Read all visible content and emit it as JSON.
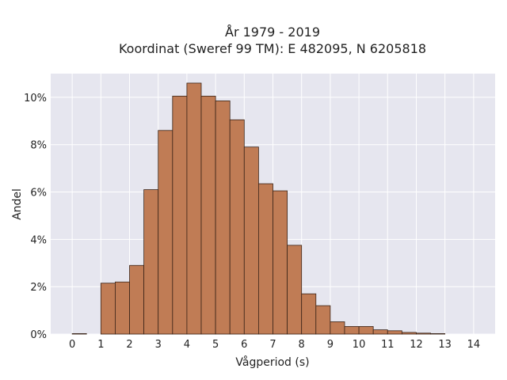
{
  "chart_data": {
    "type": "bar",
    "title_line1": "År 1979 - 2019",
    "title_line2": "Koordinat (Sweref 99 TM): E 482095, N 6205818",
    "xlabel": "Vågperiod (s)",
    "ylabel": "Andel",
    "xlim": [
      -0.75,
      14.75
    ],
    "ylim": [
      0,
      11.0
    ],
    "x_ticks": [
      0,
      1,
      2,
      3,
      4,
      5,
      6,
      7,
      8,
      9,
      10,
      11,
      12,
      13,
      14
    ],
    "y_ticks": [
      {
        "value": 0,
        "label": "0%"
      },
      {
        "value": 2,
        "label": "2%"
      },
      {
        "value": 4,
        "label": "4%"
      },
      {
        "value": 6,
        "label": "6%"
      },
      {
        "value": 8,
        "label": "8%"
      },
      {
        "value": 10,
        "label": "10%"
      }
    ],
    "bin_width": 0.5,
    "bin_starts": [
      0,
      1,
      1.5,
      2,
      2.5,
      3,
      3.5,
      4,
      4.5,
      5,
      5.5,
      6,
      6.5,
      7,
      7.5,
      8,
      8.5,
      9,
      9.5,
      10,
      10.5,
      11,
      11.5,
      12,
      12.5
    ],
    "values": [
      0.02,
      2.15,
      2.2,
      2.9,
      6.1,
      8.6,
      10.05,
      10.6,
      10.05,
      9.85,
      9.05,
      7.9,
      6.35,
      6.05,
      3.75,
      1.7,
      1.2,
      0.52,
      0.32,
      0.32,
      0.18,
      0.14,
      0.07,
      0.04,
      0.02
    ],
    "grid": true,
    "colors": {
      "bar": "#c07c55",
      "bar_edge": "#3a2418",
      "plot_bg": "#e6e6ef",
      "grid": "#ffffff"
    }
  }
}
